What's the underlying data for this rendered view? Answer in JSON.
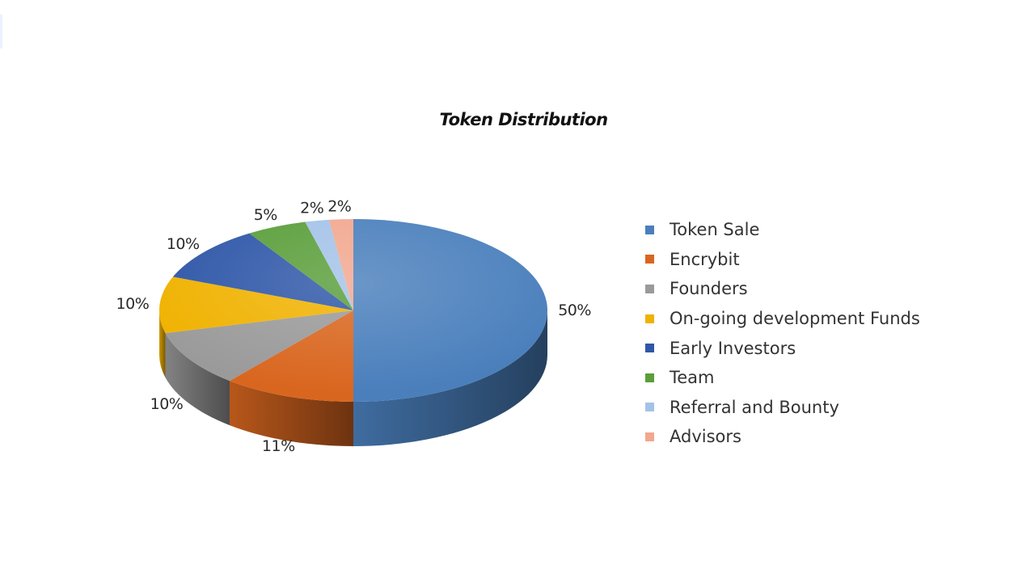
{
  "chart_data": {
    "type": "pie",
    "title": "Token Distribution",
    "categories": [
      "Token Sale",
      "Encrybit",
      "Founders",
      "On-going development Funds",
      "Early Investors",
      "Team",
      "Referral and Bounty",
      "Advisors"
    ],
    "values": [
      50,
      11,
      10,
      10,
      10,
      5,
      2,
      2
    ],
    "data_labels": [
      "50%",
      "11%",
      "10%",
      "10%",
      "10%",
      "5%",
      "2%",
      "2%"
    ],
    "colors": [
      "#4a7fbc",
      "#d9661f",
      "#9a9a9a",
      "#f0b200",
      "#2f57a8",
      "#5a9e3a",
      "#a4c2e8",
      "#f2a78e"
    ],
    "legend_position": "right",
    "style": "3d-pie"
  }
}
